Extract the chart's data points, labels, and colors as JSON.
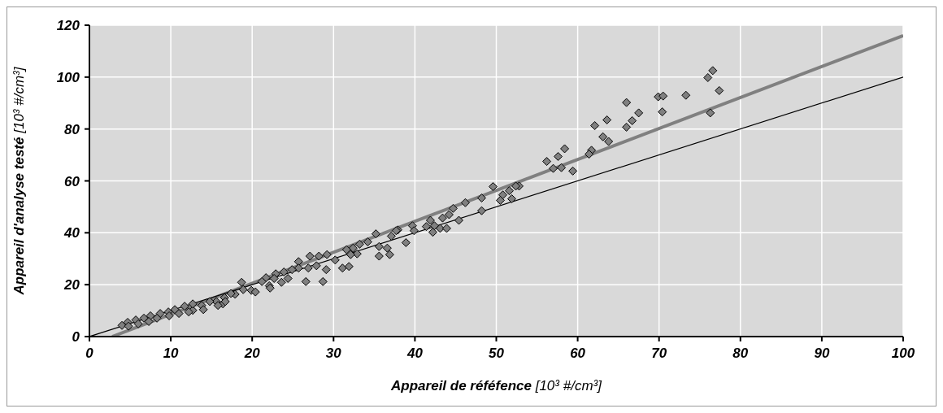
{
  "chart_data": {
    "type": "scatter",
    "xlabel": "Appareil de réféfence   [10³ #/cm³]",
    "ylabel": "Appareil d'analyse testé  [10³ #/cm³]",
    "xlim": [
      0,
      100
    ],
    "xticks": [
      0,
      10,
      20,
      30,
      40,
      50,
      60,
      70,
      80,
      90,
      100
    ],
    "ylim": [
      0,
      120
    ],
    "yticks": [
      0,
      20,
      40,
      60,
      80,
      100,
      120
    ],
    "grid": true,
    "legend": false,
    "marker": "diamond",
    "series": [
      {
        "type": "line",
        "marker": "none",
        "color": "#808080",
        "x": [
          2.8,
          100
        ],
        "values": [
          0,
          116
        ]
      },
      {
        "type": "line",
        "marker": "none",
        "color": "#000000",
        "x": [
          0,
          100
        ],
        "values": [
          0,
          100
        ]
      },
      {
        "color": "#808080",
        "x": [
          76.6,
          76.0,
          77.4,
          76.3,
          73.3,
          69.9,
          70.5,
          70.4,
          66.0,
          67.5,
          66.7,
          66.0,
          63.6,
          62.1,
          63.1,
          63.8,
          61.7,
          61.4,
          58.4,
          57.6,
          56.2,
          57.0,
          58.0,
          59.4,
          52.8,
          49.6,
          52.4,
          51.6,
          50.8,
          50.5,
          51.9,
          48.2,
          48.2,
          46.2,
          44.7,
          44.2,
          45.4,
          43.4,
          41.9,
          42.4,
          43.1,
          43.9,
          41.4,
          42.2,
          39.7,
          39.9,
          37.9,
          37.1,
          35.2,
          38.9,
          37.7,
          34.2,
          35.6,
          36.6,
          36.9,
          35.6,
          33.2,
          32.4,
          31.6,
          32.9,
          32.1,
          31.1,
          31.9,
          30.2,
          29.2,
          28.2,
          27.1,
          29.1,
          28.7,
          27.9,
          26.9,
          26.6,
          25.7,
          25.7,
          24.9,
          23.9,
          24.4,
          22.9,
          22.7,
          21.7,
          21.2,
          23.6,
          22.1,
          18.7,
          19.9,
          18.9,
          20.4,
          22.2,
          17.9,
          16.6,
          15.6,
          16.4,
          14.8,
          13.8,
          12.7,
          12.7,
          11.7,
          10.5,
          9.7,
          8.7,
          7.5,
          6.7,
          5.7,
          4.7,
          4.0,
          4.8,
          6.0,
          7.3,
          8.3,
          9.8,
          11.0,
          12.2,
          14.0,
          15.8,
          16.7,
          17.4
        ],
        "values": [
          102.5,
          99.8,
          94.8,
          86.2,
          93,
          92.4,
          92.7,
          86.6,
          90.2,
          86.2,
          83.2,
          80.7,
          83.5,
          81.3,
          77.0,
          75.2,
          71.8,
          70.3,
          72.4,
          69.4,
          67.5,
          64.8,
          65.1,
          63.8,
          58,
          57.8,
          58,
          56.2,
          54.6,
          52.5,
          53.1,
          53.4,
          48.5,
          51.6,
          49.4,
          47,
          44.8,
          45.7,
          44.8,
          42.7,
          41.7,
          41.7,
          42.4,
          40.2,
          42.7,
          40.8,
          41.1,
          38.7,
          39.6,
          36.2,
          40.8,
          36.5,
          34.7,
          34.1,
          31.6,
          31,
          35.6,
          34.1,
          33.5,
          31.9,
          31.6,
          26.4,
          27,
          29.5,
          31.6,
          31,
          31,
          25.8,
          21.2,
          27.3,
          26.4,
          21.2,
          28.9,
          26.4,
          25.8,
          24.9,
          22.4,
          24.2,
          22.4,
          22.7,
          21.2,
          20.9,
          19.6,
          20.9,
          17.8,
          18.1,
          17.2,
          18.7,
          16.3,
          15,
          13.5,
          12.6,
          13.5,
          12,
          10.1,
          12.6,
          11.7,
          10.4,
          9.5,
          8.9,
          8,
          7.1,
          6.4,
          5.5,
          4.3,
          4,
          4.9,
          5.8,
          7.1,
          8,
          8.9,
          9.5,
          10.4,
          12,
          13.5,
          16.6
        ]
      }
    ]
  }
}
